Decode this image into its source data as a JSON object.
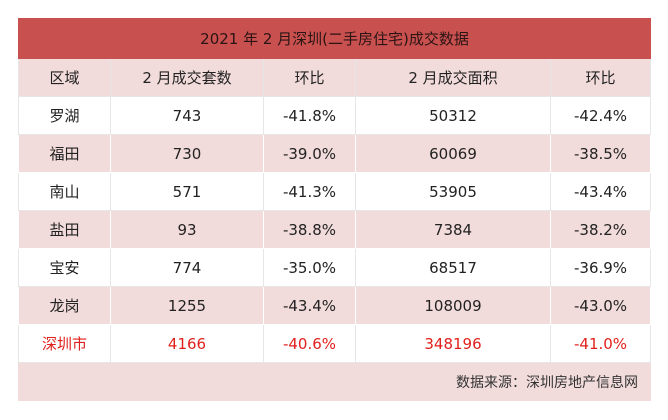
{
  "table": {
    "title": "2021 年 2 月深圳(二手房住宅)成交数据",
    "columns": [
      "区域",
      "2 月成交套数",
      "环比",
      "2 月成交面积",
      "环比"
    ],
    "rows": [
      [
        "罗湖",
        "743",
        "-41.8%",
        "50312",
        "-42.4%"
      ],
      [
        "福田",
        "730",
        "-39.0%",
        "60069",
        "-38.5%"
      ],
      [
        "南山",
        "571",
        "-41.3%",
        "53905",
        "-43.4%"
      ],
      [
        "盐田",
        "93",
        "-38.8%",
        "7384",
        "-38.2%"
      ],
      [
        "宝安",
        "774",
        "-35.0%",
        "68517",
        "-36.9%"
      ],
      [
        "龙岗",
        "1255",
        "-43.4%",
        "108009",
        "-43.0%"
      ],
      [
        "深圳市",
        "4166",
        "-40.6%",
        "348196",
        "-41.0%"
      ]
    ],
    "source": "数据来源：深圳房地产信息网"
  }
}
